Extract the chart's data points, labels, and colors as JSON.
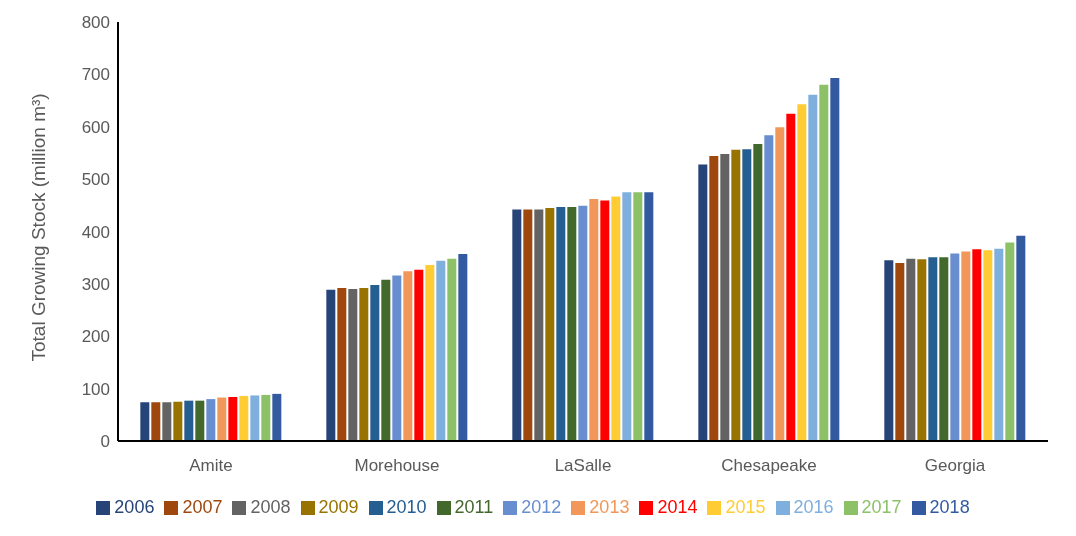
{
  "chart_data": {
    "type": "bar",
    "ylabel": "Total Growing Stock (million m³)",
    "categories": [
      "Amite",
      "Morehouse",
      "LaSalle",
      "Chesapeake",
      "Georgia"
    ],
    "series": [
      {
        "name": "2006",
        "color": "#264478",
        "values": [
          74,
          289,
          442,
          528,
          345
        ]
      },
      {
        "name": "2007",
        "color": "#9e480e",
        "values": [
          74,
          292,
          442,
          544,
          340
        ]
      },
      {
        "name": "2008",
        "color": "#636363",
        "values": [
          74,
          290,
          442,
          548,
          348
        ]
      },
      {
        "name": "2009",
        "color": "#997300",
        "values": [
          75,
          292,
          445,
          556,
          347
        ]
      },
      {
        "name": "2010",
        "color": "#255e91",
        "values": [
          77,
          298,
          447,
          557,
          351
        ]
      },
      {
        "name": "2011",
        "color": "#43682b",
        "values": [
          77,
          308,
          447,
          567,
          351
        ]
      },
      {
        "name": "2012",
        "color": "#698ed0",
        "values": [
          80,
          316,
          449,
          584,
          358
        ]
      },
      {
        "name": "2013",
        "color": "#f1975a",
        "values": [
          83,
          324,
          462,
          599,
          362
        ]
      },
      {
        "name": "2014",
        "color": "#ff0000",
        "values": [
          84,
          327,
          459,
          625,
          366
        ]
      },
      {
        "name": "2015",
        "color": "#ffcd33",
        "values": [
          86,
          336,
          467,
          643,
          364
        ]
      },
      {
        "name": "2016",
        "color": "#7fafdd",
        "values": [
          87,
          344,
          475,
          661,
          367
        ]
      },
      {
        "name": "2017",
        "color": "#8cc168",
        "values": [
          88,
          348,
          475,
          680,
          379
        ]
      },
      {
        "name": "2018",
        "color": "#335aa1",
        "values": [
          90,
          357,
          475,
          693,
          392
        ]
      }
    ],
    "ylim": [
      0,
      800
    ],
    "yticks": [
      0,
      100,
      200,
      300,
      400,
      500,
      600,
      700,
      800
    ],
    "legend": "bottom"
  }
}
